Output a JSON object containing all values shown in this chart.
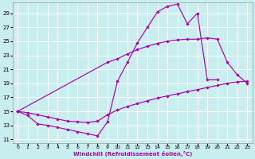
{
  "xlabel": "Windchill (Refroidissement éolien,°C)",
  "bg_color": "#c8eef0",
  "grid_color": "#ffffff",
  "line_color": "#aa00aa",
  "xlim": [
    -0.5,
    23.5
  ],
  "ylim": [
    10.5,
    30.5
  ],
  "xticks": [
    0,
    1,
    2,
    3,
    4,
    5,
    6,
    7,
    8,
    9,
    10,
    11,
    12,
    13,
    14,
    15,
    16,
    17,
    18,
    19,
    20,
    21,
    22,
    23
  ],
  "yticks": [
    11,
    13,
    15,
    17,
    19,
    21,
    23,
    25,
    27,
    29
  ],
  "curve1": {
    "x": [
      0,
      1,
      2,
      3,
      4,
      5,
      6,
      7,
      8,
      9,
      10,
      11,
      12,
      13,
      14,
      15,
      16,
      17,
      18,
      19,
      20
    ],
    "y": [
      15.0,
      14.4,
      13.2,
      13.0,
      12.7,
      12.4,
      12.1,
      11.8,
      11.5,
      13.5,
      19.3,
      22.0,
      24.8,
      27.0,
      29.2,
      30.0,
      30.3,
      27.5,
      29.0,
      19.5,
      19.5
    ]
  },
  "curve2": {
    "x": [
      0,
      9,
      10,
      11,
      12,
      13,
      14,
      15,
      16,
      17,
      18,
      19,
      20,
      21,
      22,
      23
    ],
    "y": [
      15.0,
      22.0,
      22.5,
      23.2,
      23.8,
      24.3,
      24.7,
      25.0,
      25.2,
      25.3,
      25.3,
      25.5,
      25.3,
      22.0,
      20.2,
      19.0
    ]
  },
  "curve3": {
    "x": [
      0,
      1,
      2,
      3,
      4,
      5,
      6,
      7,
      8,
      9,
      10,
      11,
      12,
      13,
      14,
      15,
      16,
      17,
      18,
      19,
      20,
      21,
      22,
      23
    ],
    "y": [
      15.0,
      14.8,
      14.5,
      14.2,
      13.9,
      13.6,
      13.5,
      13.4,
      13.6,
      14.5,
      15.2,
      15.7,
      16.1,
      16.5,
      16.9,
      17.2,
      17.5,
      17.8,
      18.1,
      18.4,
      18.7,
      19.0,
      19.2,
      19.3
    ]
  }
}
